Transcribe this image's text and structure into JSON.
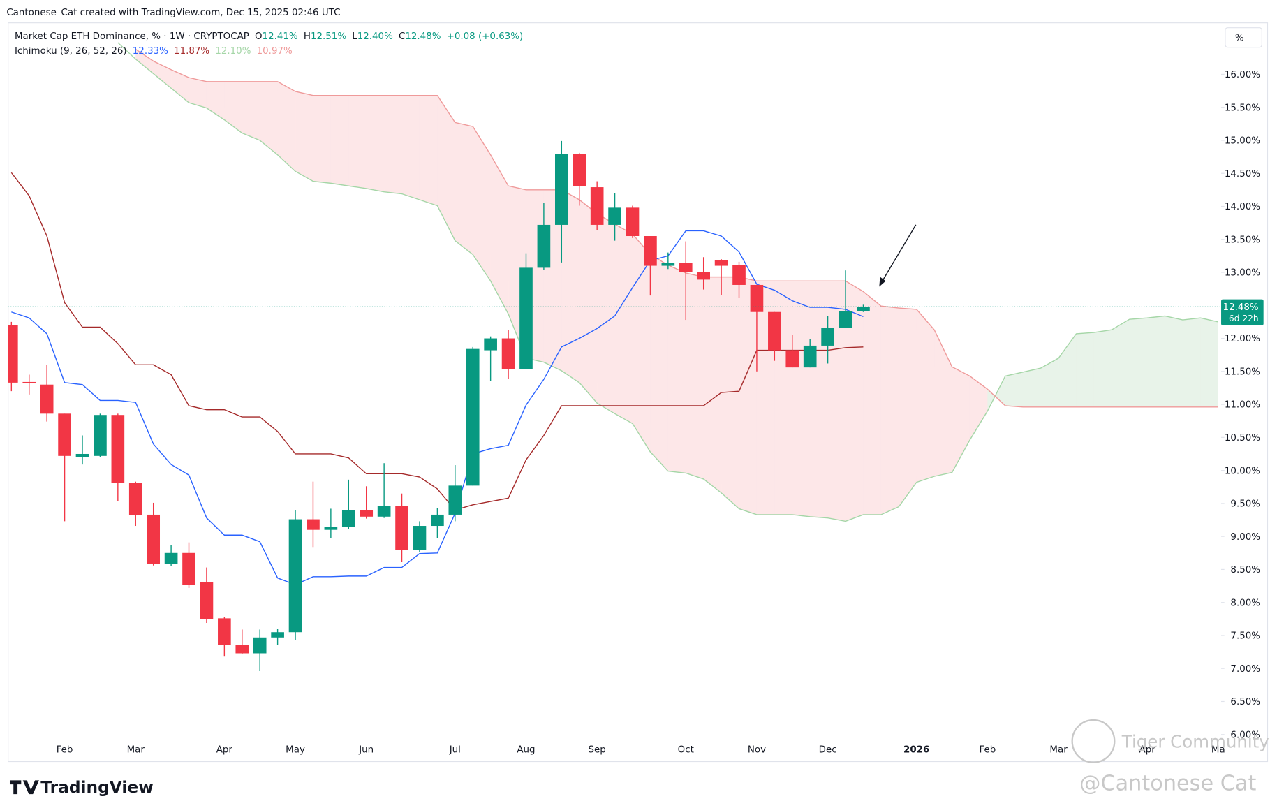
{
  "header": "Cantonese_Cat created with TradingView.com, Dec 15, 2025 02:46 UTC",
  "brand": "TradingView",
  "watermark": [
    "Tiger Community",
    "@Cantonese Cat"
  ],
  "chart_data": {
    "type": "candlestick",
    "title": "Market Cap ETH Dominance, % · 1W · CRYPTOCAP",
    "ohlc_legend": [
      {
        "key": "O",
        "value": "12.41%"
      },
      {
        "key": "H",
        "value": "12.51%"
      },
      {
        "key": "L",
        "value": "12.40%"
      },
      {
        "key": "C",
        "value": "12.48%"
      }
    ],
    "change": "+0.08 (+0.63%)",
    "axis_unit": "%",
    "up_color": "#089981",
    "down_color": "#f23645",
    "categories": [
      null,
      null,
      null,
      "Feb",
      null,
      null,
      null,
      "Mar",
      null,
      null,
      null,
      null,
      "Apr",
      null,
      null,
      null,
      "May",
      null,
      null,
      null,
      "Jun",
      null,
      null,
      null,
      null,
      "Jul",
      null,
      null,
      null,
      "Aug",
      null,
      null,
      null,
      "Sep",
      null,
      null,
      null,
      null,
      "Oct",
      null,
      null,
      null,
      "Nov",
      null,
      null,
      null,
      "Dec",
      null,
      null,
      null,
      null,
      "2026",
      null,
      null,
      null,
      "Feb",
      null,
      null,
      null,
      "Mar",
      null,
      null,
      null,
      null,
      "Apr",
      null,
      null,
      null,
      "Ma"
    ],
    "open": [
      12.2,
      11.34,
      11.3,
      10.86,
      10.2,
      10.22,
      10.84,
      9.81,
      9.33,
      8.58,
      8.75,
      8.31,
      7.76,
      7.36,
      7.23,
      7.47,
      7.55,
      9.26,
      9.1,
      9.14,
      9.4,
      9.3,
      9.46,
      8.8,
      9.16,
      9.33,
      9.77,
      11.82,
      12.0,
      11.54,
      13.07,
      13.72,
      14.79,
      14.29,
      13.72,
      13.98,
      13.55,
      13.1,
      13.14,
      13.0,
      13.18,
      13.11,
      12.81,
      12.4,
      11.82,
      11.56,
      11.89,
      12.16,
      12.41,
      null,
      null,
      null,
      null,
      null,
      null,
      null,
      null,
      null,
      null,
      null,
      null,
      null,
      null,
      null,
      null,
      null,
      null,
      null,
      null
    ],
    "high": [
      12.25,
      11.45,
      11.6,
      10.86,
      10.53,
      10.86,
      10.86,
      9.83,
      9.51,
      8.87,
      8.91,
      8.53,
      7.78,
      7.59,
      7.59,
      7.6,
      9.4,
      9.83,
      9.42,
      9.86,
      9.76,
      10.11,
      9.65,
      9.23,
      9.43,
      10.08,
      11.87,
      12.03,
      12.13,
      13.29,
      14.05,
      14.99,
      14.81,
      14.38,
      14.2,
      14.01,
      13.55,
      13.3,
      13.47,
      13.23,
      13.2,
      13.16,
      12.81,
      12.4,
      12.05,
      11.99,
      12.34,
      13.03,
      12.51,
      null,
      null,
      null,
      null,
      null,
      null,
      null,
      null,
      null,
      null,
      null,
      null,
      null,
      null,
      null,
      null,
      null,
      null,
      null,
      null
    ],
    "low": [
      11.2,
      11.15,
      10.74,
      9.23,
      10.09,
      10.2,
      9.54,
      9.16,
      8.56,
      8.55,
      8.22,
      7.69,
      7.18,
      7.22,
      6.96,
      7.36,
      7.43,
      8.84,
      8.98,
      9.11,
      9.27,
      9.28,
      8.61,
      8.76,
      8.98,
      9.23,
      9.77,
      11.36,
      11.39,
      11.54,
      13.04,
      13.15,
      14.01,
      13.64,
      13.48,
      13.52,
      12.65,
      13.05,
      12.28,
      12.74,
      12.66,
      12.61,
      11.5,
      11.66,
      11.56,
      11.56,
      11.62,
      12.16,
      12.4,
      null,
      null,
      null,
      null,
      null,
      null,
      null,
      null,
      null,
      null,
      null,
      null,
      null,
      null,
      null,
      null,
      null,
      null,
      null,
      null
    ],
    "close": [
      11.33,
      11.32,
      10.86,
      10.22,
      10.25,
      10.84,
      9.81,
      9.32,
      8.58,
      8.75,
      8.27,
      7.75,
      7.36,
      7.23,
      7.47,
      7.55,
      9.26,
      9.1,
      9.14,
      9.4,
      9.3,
      9.46,
      8.8,
      9.16,
      9.33,
      9.77,
      11.84,
      12.0,
      11.54,
      13.07,
      13.72,
      14.79,
      14.31,
      13.72,
      13.98,
      13.55,
      13.1,
      13.14,
      13.0,
      12.89,
      13.1,
      12.81,
      12.4,
      11.82,
      11.56,
      11.89,
      12.16,
      12.41,
      12.48,
      null,
      null,
      null,
      null,
      null,
      null,
      null,
      null,
      null,
      null,
      null,
      null,
      null,
      null,
      null,
      null,
      null,
      null,
      null,
      null
    ],
    "last_price": {
      "value": 12.48,
      "label": "12.48%"
    },
    "countdown": "6d 22h",
    "indicator": {
      "title": "Ichimoku (9, 26, 52, 26)",
      "lines": [
        {
          "color": "#2962ff",
          "legend": "12.33%",
          "values": [
            12.4,
            12.31,
            12.07,
            11.33,
            11.3,
            11.06,
            11.06,
            11.03,
            10.4,
            10.09,
            9.93,
            9.28,
            9.02,
            9.02,
            8.92,
            8.37,
            8.27,
            8.39,
            8.39,
            8.4,
            8.4,
            8.53,
            8.53,
            8.74,
            8.75,
            9.35,
            10.25,
            10.33,
            10.38,
            10.99,
            11.38,
            11.87,
            12.0,
            12.15,
            12.34,
            12.77,
            13.18,
            13.25,
            13.63,
            13.63,
            13.55,
            13.31,
            12.82,
            12.73,
            12.57,
            12.47,
            12.47,
            12.44,
            12.33,
            null,
            null,
            null,
            null,
            null,
            null,
            null,
            null,
            null,
            null,
            null,
            null,
            null,
            null,
            null,
            null,
            null,
            null,
            null,
            null
          ]
        },
        {
          "color": "#a52a2a",
          "legend": "11.87%",
          "values": [
            14.51,
            14.16,
            13.55,
            12.54,
            12.17,
            12.17,
            11.92,
            11.6,
            11.6,
            11.45,
            10.98,
            10.92,
            10.92,
            10.81,
            10.81,
            10.59,
            10.25,
            10.25,
            10.25,
            10.19,
            9.95,
            9.95,
            9.95,
            9.9,
            9.72,
            9.4,
            9.48,
            9.53,
            9.58,
            10.16,
            10.53,
            10.98,
            10.98,
            10.98,
            10.98,
            10.98,
            10.98,
            10.98,
            10.98,
            10.98,
            11.18,
            11.2,
            11.82,
            11.82,
            11.82,
            11.82,
            11.82,
            11.86,
            11.87,
            null,
            null,
            null,
            null,
            null,
            null,
            null,
            null,
            null,
            null,
            null,
            null,
            null,
            null,
            null,
            null,
            null,
            null,
            null,
            null
          ]
        },
        {
          "color": "#a5d6a7",
          "legend": "12.10%",
          "values": [
            null,
            null,
            null,
            null,
            null,
            null,
            16.48,
            16.23,
            16.01,
            15.79,
            15.57,
            15.49,
            15.31,
            15.11,
            15.0,
            14.78,
            14.53,
            14.38,
            14.35,
            14.31,
            14.27,
            14.22,
            14.19,
            14.1,
            14.01,
            13.48,
            13.27,
            12.87,
            12.37,
            11.7,
            11.64,
            11.51,
            11.33,
            11.02,
            10.86,
            10.71,
            10.28,
            9.99,
            9.96,
            9.87,
            9.66,
            9.42,
            9.33,
            9.33,
            9.33,
            9.3,
            9.28,
            9.23,
            9.33,
            9.33,
            9.45,
            9.82,
            9.91,
            9.97,
            10.46,
            10.9,
            11.43,
            11.49,
            11.55,
            11.7,
            12.07,
            12.09,
            12.13,
            12.29,
            12.31,
            12.34,
            12.28,
            12.31,
            12.25
          ]
        },
        {
          "color": "#ef9a9a",
          "legend": "10.97%",
          "values": [
            null,
            null,
            null,
            null,
            null,
            null,
            null,
            16.38,
            16.2,
            16.07,
            15.95,
            15.89,
            15.89,
            15.89,
            15.89,
            15.89,
            15.74,
            15.68,
            15.68,
            15.68,
            15.68,
            15.68,
            15.68,
            15.68,
            15.68,
            15.27,
            15.21,
            14.78,
            14.31,
            14.25,
            14.25,
            14.25,
            14.1,
            13.89,
            13.73,
            13.58,
            13.27,
            13.11,
            12.99,
            12.93,
            12.93,
            12.93,
            12.87,
            12.87,
            12.87,
            12.87,
            12.87,
            12.87,
            12.71,
            12.49,
            12.46,
            12.44,
            12.13,
            11.57,
            11.43,
            11.23,
            10.98,
            10.96,
            10.96,
            10.96,
            10.96,
            10.96,
            10.96,
            10.96,
            10.96,
            10.96,
            10.96,
            10.96,
            10.96
          ]
        }
      ],
      "cloud_up_color": "rgba(67,160,71,0.12)",
      "cloud_down_color": "rgba(242,54,69,0.12)"
    },
    "ylim": [
      5.59,
      16.78
    ],
    "yticks": [
      {
        "value": 6,
        "label": "6.00%"
      },
      {
        "value": 6.5,
        "label": "6.50%"
      },
      {
        "value": 7,
        "label": "7.00%"
      },
      {
        "value": 7.5,
        "label": "7.50%"
      },
      {
        "value": 8,
        "label": "8.00%"
      },
      {
        "value": 8.5,
        "label": "8.50%"
      },
      {
        "value": 9,
        "label": "9.00%"
      },
      {
        "value": 9.5,
        "label": "9.50%"
      },
      {
        "value": 10,
        "label": "10.00%"
      },
      {
        "value": 10.5,
        "label": "10.50%"
      },
      {
        "value": 11,
        "label": "11.00%"
      },
      {
        "value": 11.5,
        "label": "11.50%"
      },
      {
        "value": 12,
        "label": "12.00%"
      },
      {
        "value": 12.5,
        "label": "12.50%"
      },
      {
        "value": 13,
        "label": "13.00%"
      },
      {
        "value": 13.5,
        "label": "13.50%"
      },
      {
        "value": 14,
        "label": "14.00%"
      },
      {
        "value": 14.5,
        "label": "14.50%"
      },
      {
        "value": 15,
        "label": "15.00%"
      },
      {
        "value": 15.5,
        "label": "15.50%"
      },
      {
        "value": 16,
        "label": "16.00%"
      }
    ],
    "grid": false
  }
}
